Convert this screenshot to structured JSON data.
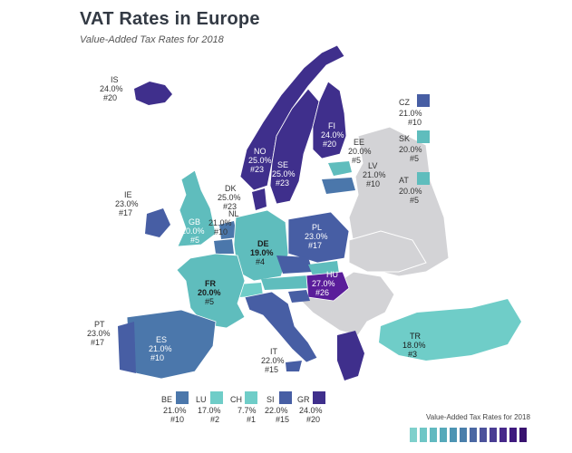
{
  "title": "VAT Rates in Europe",
  "subtitle": "Value-Added Tax Rates for 2018",
  "legend": {
    "title": "Value-Added Tax Rates for 2018",
    "colors": [
      "#7fd0cc",
      "#6fc6c6",
      "#62b9c0",
      "#56a9ba",
      "#4d94b3",
      "#4a7fab",
      "#4b68a3",
      "#4c529b",
      "#4a3d93",
      "#47298a",
      "#3f1a7e",
      "#38126f"
    ]
  },
  "colors": {
    "teal_light": "#6fcdc8",
    "teal": "#5fbdbd",
    "steel": "#4b77ab",
    "blue": "#475ea4",
    "indigo": "#3f2f8c",
    "purple": "#5a1d9a",
    "gray": "#d3d3d6"
  },
  "countries": [
    {
      "code": "IS",
      "rate": "24.0%",
      "rank": "#20"
    },
    {
      "code": "NO",
      "rate": "25.0%",
      "rank": "#23"
    },
    {
      "code": "SE",
      "rate": "25.0%",
      "rank": "#23"
    },
    {
      "code": "FI",
      "rate": "24.0%",
      "rank": "#20"
    },
    {
      "code": "EE",
      "rate": "20.0%",
      "rank": "#5"
    },
    {
      "code": "LV",
      "rate": "21.0%",
      "rank": "#10"
    },
    {
      "code": "DK",
      "rate": "25.0%",
      "rank": "#23"
    },
    {
      "code": "IE",
      "rate": "23.0%",
      "rank": "#17"
    },
    {
      "code": "GB",
      "rate": "20.0%",
      "rank": "#5"
    },
    {
      "code": "NL",
      "rate": "21.0%",
      "rank": "#10"
    },
    {
      "code": "DE",
      "rate": "19.0%",
      "rank": "#4"
    },
    {
      "code": "PL",
      "rate": "23.0%",
      "rank": "#17"
    },
    {
      "code": "FR",
      "rate": "20.0%",
      "rank": "#5"
    },
    {
      "code": "HU",
      "rate": "27.0%",
      "rank": "#26"
    },
    {
      "code": "PT",
      "rate": "23.0%",
      "rank": "#17"
    },
    {
      "code": "ES",
      "rate": "21.0%",
      "rank": "#10"
    },
    {
      "code": "IT",
      "rate": "22.0%",
      "rank": "#15"
    },
    {
      "code": "TR",
      "rate": "18.0%",
      "rank": "#3"
    }
  ],
  "side_boxes": [
    {
      "code": "CZ",
      "rate": "21.0%",
      "rank": "#10"
    },
    {
      "code": "SK",
      "rate": "20.0%",
      "rank": "#5"
    },
    {
      "code": "AT",
      "rate": "20.0%",
      "rank": "#5"
    }
  ],
  "bottom_boxes": [
    {
      "code": "BE",
      "rate": "21.0%",
      "rank": "#10"
    },
    {
      "code": "LU",
      "rate": "17.0%",
      "rank": "#2"
    },
    {
      "code": "CH",
      "rate": "7.7%",
      "rank": "#1"
    },
    {
      "code": "SI",
      "rate": "22.0%",
      "rank": "#15"
    },
    {
      "code": "GR",
      "rate": "24.0%",
      "rank": "#20"
    }
  ]
}
